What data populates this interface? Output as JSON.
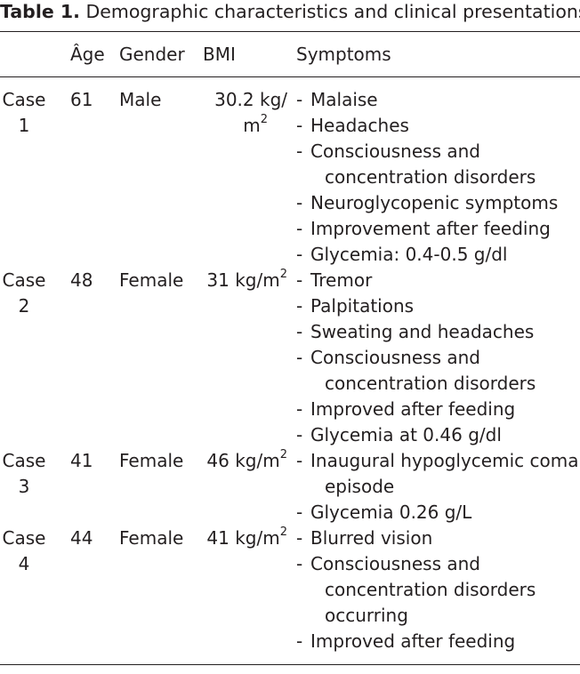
{
  "caption": {
    "label": "Table 1.",
    "text": "Demographic characteristics and clinical presentations."
  },
  "headers": {
    "age": "Âge",
    "gender": "Gender",
    "bmi": "BMI",
    "symptoms": "Symptoms"
  },
  "rows": [
    {
      "case_word": "Case",
      "case_num": "1",
      "age": "61",
      "gender": "Male",
      "bmi_value": "30.2 kg/",
      "bmi_unit": "m",
      "bmi_exp": "2",
      "symptoms": [
        {
          "dash": "-",
          "line1": "Malaise",
          "line2": ""
        },
        {
          "dash": "-",
          "line1": "Headaches",
          "line2": ""
        },
        {
          "dash": "-",
          "line1": "Consciousness and",
          "line2": "concentration disorders"
        },
        {
          "dash": "-",
          "line1": "Neuroglycopenic symptoms",
          "line2": ""
        },
        {
          "dash": "-",
          "line1": "Improvement after feeding",
          "line2": ""
        },
        {
          "dash": "-",
          "line1": "Glycemia: 0.4-0.5 g/dl",
          "line2": ""
        }
      ]
    },
    {
      "case_word": "Case",
      "case_num": "2",
      "age": "48",
      "gender": "Female",
      "bmi_value": "31 kg/m",
      "bmi_unit": "",
      "bmi_exp": "2",
      "symptoms": [
        {
          "dash": "-",
          "line1": "Tremor",
          "line2": ""
        },
        {
          "dash": "-",
          "line1": "Palpitations",
          "line2": ""
        },
        {
          "dash": "-",
          "line1": "Sweating and headaches",
          "line2": ""
        },
        {
          "dash": "-",
          "line1": "Consciousness and",
          "line2": "concentration disorders"
        },
        {
          "dash": "-",
          "line1": "Improved after feeding",
          "line2": ""
        },
        {
          "dash": "-",
          "line1": "Glycemia at 0.46 g/dl",
          "line2": ""
        }
      ]
    },
    {
      "case_word": "Case",
      "case_num": "3",
      "age": "41",
      "gender": "Female",
      "bmi_value": "46 kg/m",
      "bmi_unit": "",
      "bmi_exp": "2",
      "symptoms": [
        {
          "dash": "-",
          "line1": "Inaugural hypoglycemic coma",
          "line2": "episode"
        },
        {
          "dash": "-",
          "line1": "Glycemia 0.26 g/L",
          "line2": ""
        }
      ]
    },
    {
      "case_word": "Case",
      "case_num": "4",
      "age": "44",
      "gender": "Female",
      "bmi_value": "41 kg/m",
      "bmi_unit": "",
      "bmi_exp": "2",
      "symptoms": [
        {
          "dash": "-",
          "line1": "Blurred vision",
          "line2": ""
        },
        {
          "dash": "-",
          "line1": "Consciousness and",
          "line2": "concentration disorders",
          "line3": "occurring"
        },
        {
          "dash": "-",
          "line1": "Improved after feeding",
          "line2": ""
        }
      ]
    }
  ]
}
